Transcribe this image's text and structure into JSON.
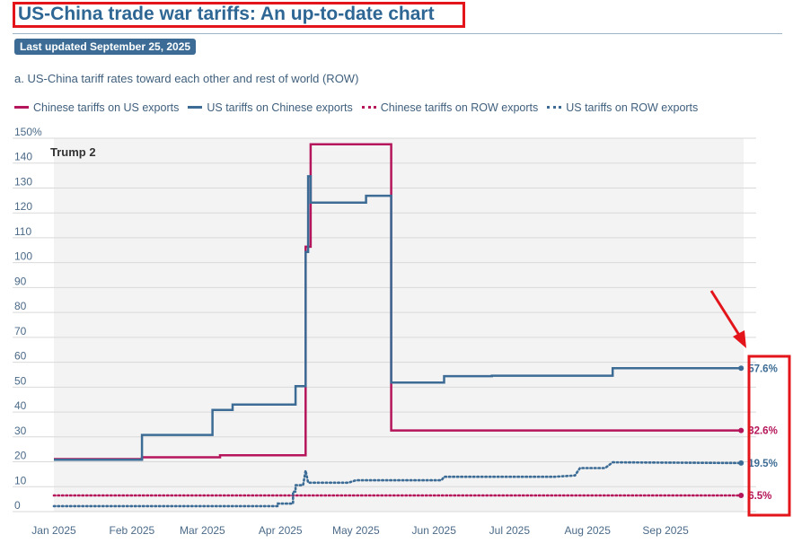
{
  "header": {
    "title": "US-China trade war tariffs: An up-to-date chart",
    "updated": "Last updated September 25, 2025",
    "subtitle": "a. US-China tariff rates toward each other and rest of world (ROW)"
  },
  "colors": {
    "china": "#b5155a",
    "us": "#3c6c95",
    "grid": "#d9d9d9",
    "highlight": "#e3151a"
  },
  "chart_data": {
    "type": "line",
    "title": "a. US-China tariff rates toward each other and rest of world (ROW)",
    "xlabel": "",
    "ylabel": "",
    "ylim": [
      0,
      150
    ],
    "y_ticks": [
      0,
      10,
      20,
      30,
      40,
      50,
      60,
      70,
      80,
      90,
      100,
      110,
      120,
      130,
      140,
      150
    ],
    "y_tick_labels": [
      "0",
      "10",
      "20",
      "30",
      "40",
      "50",
      "60",
      "70",
      "80",
      "90",
      "100",
      "110",
      "120",
      "130",
      "140",
      "150%"
    ],
    "x_ticks": [
      {
        "label": "Jan 2025",
        "day": 1
      },
      {
        "label": "Feb 2025",
        "day": 32
      },
      {
        "label": "Mar 2025",
        "day": 60
      },
      {
        "label": "Apr 2025",
        "day": 91
      },
      {
        "label": "May 2025",
        "day": 121
      },
      {
        "label": "Jun 2025",
        "day": 152
      },
      {
        "label": "Jul 2025",
        "day": 182
      },
      {
        "label": "Aug 2025",
        "day": 213
      },
      {
        "label": "Sep 2025",
        "day": 244
      }
    ],
    "x_range": [
      1,
      275
    ],
    "shaded_period": {
      "label": "Trump 2",
      "start_day": 1,
      "end_day": 275
    },
    "series": [
      {
        "name": "Chinese tariffs on US exports",
        "style": "solid",
        "color": "#b5155a",
        "points": [
          [
            1,
            21.1
          ],
          [
            36,
            21.1
          ],
          [
            36,
            21.8
          ],
          [
            67,
            21.8
          ],
          [
            67,
            22.6
          ],
          [
            101,
            22.6
          ],
          [
            101,
            106.4
          ],
          [
            103,
            106.4
          ],
          [
            103,
            147.6
          ],
          [
            135,
            147.6
          ],
          [
            135,
            32.6
          ],
          [
            274,
            32.6
          ]
        ],
        "end_label": "32.6%"
      },
      {
        "name": "US tariffs on Chinese exports",
        "style": "solid",
        "color": "#3c6c95",
        "points": [
          [
            1,
            20.8
          ],
          [
            36,
            20.8
          ],
          [
            36,
            30.8
          ],
          [
            64,
            30.8
          ],
          [
            64,
            40.8
          ],
          [
            72,
            40.8
          ],
          [
            72,
            43.0
          ],
          [
            97,
            43.0
          ],
          [
            97,
            50.4
          ],
          [
            101,
            50.4
          ],
          [
            101,
            104.3
          ],
          [
            102,
            104.3
          ],
          [
            102,
            134.7
          ],
          [
            103,
            134.7
          ],
          [
            103,
            124.1
          ],
          [
            125,
            124.1
          ],
          [
            125,
            126.9
          ],
          [
            135,
            126.9
          ],
          [
            135,
            51.8
          ],
          [
            156,
            51.8
          ],
          [
            156,
            54.4
          ],
          [
            175,
            54.4
          ],
          [
            175,
            54.6
          ],
          [
            223,
            54.6
          ],
          [
            223,
            57.6
          ],
          [
            274,
            57.6
          ]
        ],
        "end_label": "57.6%"
      },
      {
        "name": "Chinese tariffs on ROW exports",
        "style": "dotted",
        "color": "#b5155a",
        "points": [
          [
            1,
            6.5
          ],
          [
            274,
            6.5
          ]
        ],
        "end_label": "6.5%"
      },
      {
        "name": "US tariffs on ROW exports",
        "style": "dotted",
        "color": "#3c6c95",
        "points": [
          [
            1,
            2.2
          ],
          [
            90,
            2.2
          ],
          [
            90,
            3.2
          ],
          [
            96,
            3.2
          ],
          [
            96,
            8.0
          ],
          [
            97,
            8.0
          ],
          [
            97,
            10.6
          ],
          [
            100,
            10.6
          ],
          [
            101,
            16.5
          ],
          [
            102,
            11.6
          ],
          [
            118,
            11.6
          ],
          [
            121,
            12.6
          ],
          [
            155,
            12.6
          ],
          [
            156,
            14.0
          ],
          [
            200,
            14.0
          ],
          [
            208,
            14.5
          ],
          [
            210,
            17.5
          ],
          [
            220,
            17.5
          ],
          [
            223,
            19.8
          ],
          [
            274,
            19.5
          ]
        ],
        "end_label": "19.5%"
      }
    ],
    "annotations": [
      "Trump 2"
    ]
  }
}
